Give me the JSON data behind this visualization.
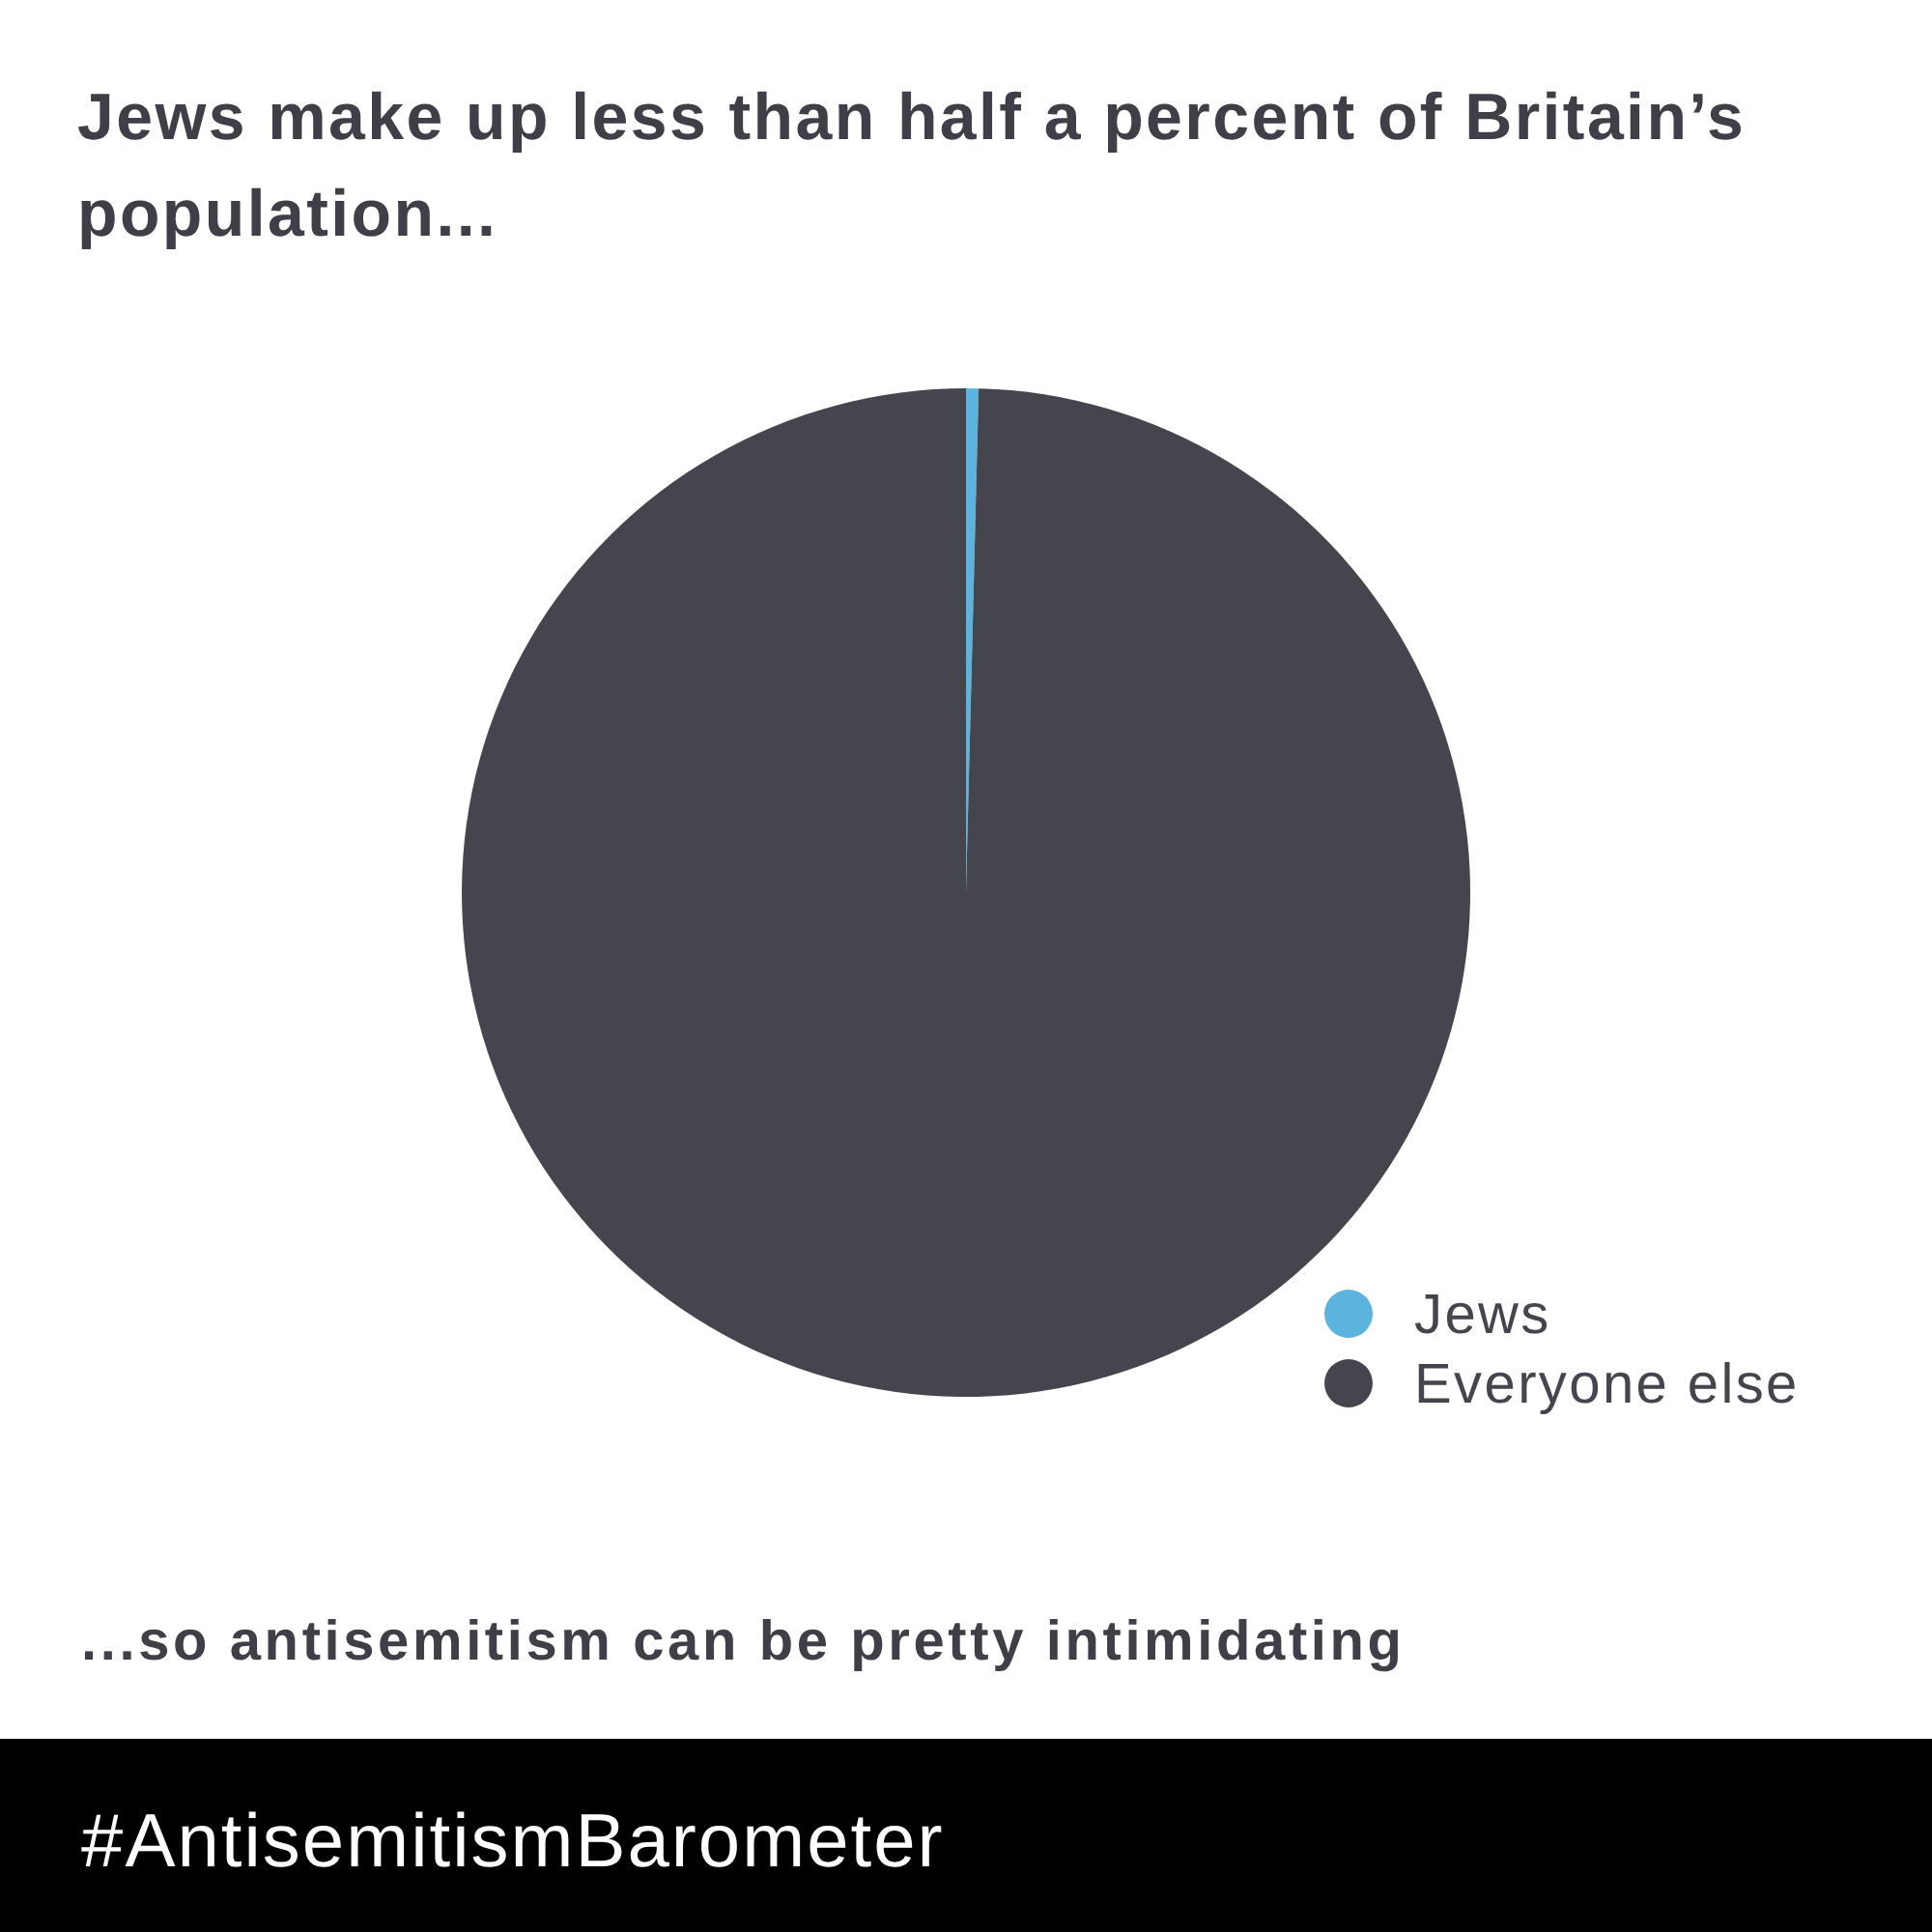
{
  "chart_data": {
    "type": "pie",
    "title": "Jews make up less than half a percent of Britain’s population...",
    "categories": [
      "Jews",
      "Everyone else"
    ],
    "values": [
      0.4,
      99.6
    ],
    "colors": [
      "#5ab4dd",
      "#45454e"
    ],
    "legend": "bottom right",
    "annotations": [
      "...so antisemitism can be pretty intimidating",
      "#AntisemitismBarometer"
    ]
  }
}
